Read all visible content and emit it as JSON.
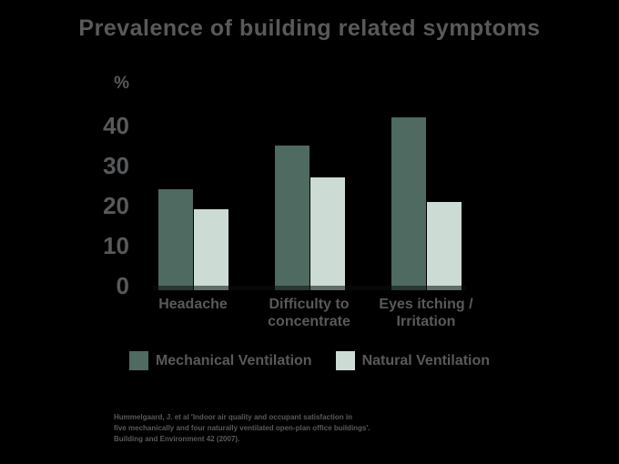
{
  "title": "Prevalence of building related symptoms",
  "colors": {
    "background": "#000000",
    "text": "#58595B",
    "mechanical": "#4F6A60",
    "natural": "#CCDCD4"
  },
  "chart_data": {
    "type": "bar",
    "title": "Prevalence of building related symptoms",
    "unit_label": "%",
    "categories": [
      "Headache",
      "Difficulty to concentrate",
      "Eyes itching / Irritation"
    ],
    "category_line_breaks": [
      [
        "Headache"
      ],
      [
        "Difficulty to",
        "concentrate"
      ],
      [
        "Eyes itching /",
        "Irritation"
      ]
    ],
    "series": [
      {
        "name": "Mechanical Ventilation",
        "color": "#4F6A60",
        "values": [
          24,
          35,
          42
        ]
      },
      {
        "name": "Natural Ventilation",
        "color": "#CCDCD4",
        "values": [
          19,
          27,
          21
        ]
      }
    ],
    "xlabel": "",
    "ylabel": "%",
    "ylim": [
      0,
      45
    ],
    "yticks": [
      40,
      30,
      20,
      10,
      0
    ],
    "grid": false,
    "legend_position": "bottom"
  },
  "footnote": {
    "lines": [
      "Hummelgaard, J. et al 'Indoor air quality and occupant satisfaction in",
      "five mechanically and four naturally ventilated open-plan office buildings'.",
      "Building and Environment 42 (2007)."
    ]
  }
}
